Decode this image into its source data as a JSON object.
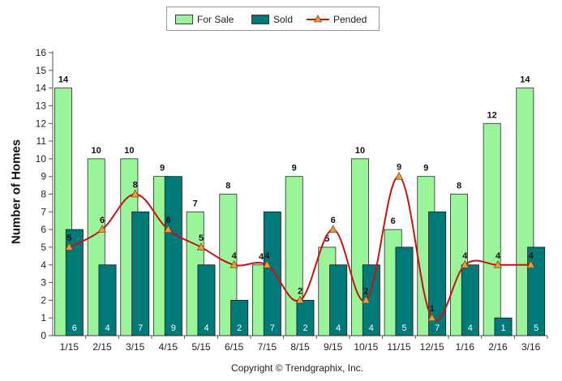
{
  "chart_data": {
    "type": "bar",
    "categories": [
      "1/15",
      "2/15",
      "3/15",
      "4/15",
      "5/15",
      "6/15",
      "7/15",
      "8/15",
      "9/15",
      "10/15",
      "11/15",
      "12/15",
      "1/16",
      "2/16",
      "3/16"
    ],
    "series": [
      {
        "name": "For Sale",
        "type": "bar",
        "values": [
          14,
          10,
          10,
          9,
          7,
          8,
          4,
          9,
          5,
          10,
          6,
          9,
          8,
          12,
          14
        ]
      },
      {
        "name": "Sold",
        "type": "bar",
        "values": [
          6,
          4,
          7,
          9,
          4,
          2,
          7,
          2,
          4,
          4,
          5,
          7,
          4,
          1,
          5
        ]
      },
      {
        "name": "Pended",
        "type": "line",
        "values": [
          5,
          6,
          8,
          6,
          5,
          4,
          4,
          2,
          6,
          2,
          9,
          1,
          4,
          4,
          4
        ]
      }
    ],
    "ylabel": "Number of Homes",
    "ylim": [
      0,
      16
    ],
    "yticks": [
      0,
      1,
      2,
      3,
      4,
      5,
      6,
      7,
      8,
      9,
      10,
      11,
      12,
      13,
      14,
      15,
      16
    ],
    "legend_position": "top",
    "grid": false,
    "colors": {
      "for_sale": "#9af59a",
      "sold": "#007a78",
      "pended_line": "#cc1010",
      "pended_marker": "#e8a040"
    }
  },
  "legend": {
    "for_sale": "For Sale",
    "sold": "Sold",
    "pended": "Pended"
  },
  "axis": {
    "ylabel": "Number of Homes"
  },
  "copyright": "Copyright © Trendgraphix, Inc."
}
